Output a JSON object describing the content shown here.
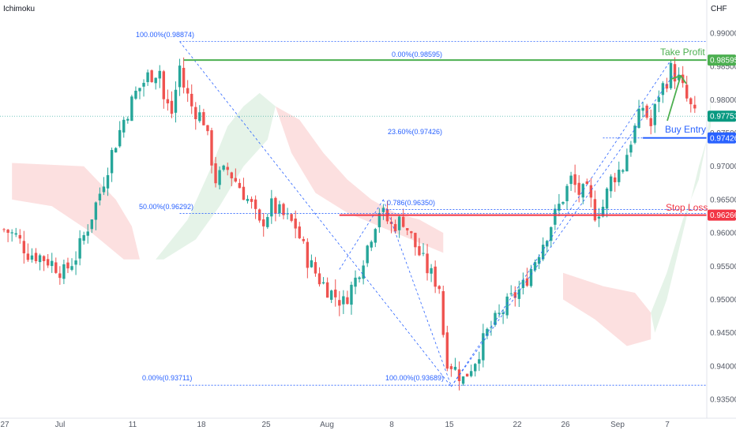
{
  "indicator_label": "Ichimoku",
  "currency_label": "CHF",
  "chart_data": {
    "type": "candlestick",
    "instrument_currency": "CHF",
    "ylim": [
      0.9325,
      0.9925
    ],
    "y_ticks": [
      "0.99000",
      "0.98500",
      "0.98000",
      "0.97500",
      "0.97000",
      "0.96500",
      "0.96000",
      "0.95500",
      "0.95000",
      "0.94500",
      "0.94000",
      "0.93500"
    ],
    "x_ticks": [
      "27",
      "Jul",
      "11",
      "18",
      "25",
      "Aug",
      "8",
      "15",
      "22",
      "26",
      "Sep",
      "7"
    ],
    "current_price": "0.97753",
    "levels": {
      "take_profit": {
        "label": "Take Profit",
        "price": "0.98595",
        "color": "#4caf50"
      },
      "buy_entry": {
        "label": "Buy Entry",
        "price": "0.97426",
        "color": "#2962ff"
      },
      "stop_loss": {
        "label": "Stop Loss",
        "price": "0.96266",
        "color": "#f23645"
      }
    },
    "fib_labels": [
      {
        "text": "100.00%(0.98874)",
        "price": 0.98874
      },
      {
        "text": "0.00%(0.98595)",
        "price": 0.98595
      },
      {
        "text": "23.60%(0.97426)",
        "price": 0.97426
      },
      {
        "text": "50.00%(0.96292)",
        "price": 0.96292
      },
      {
        "text": "0.786(0.96350)",
        "price": 0.9635
      },
      {
        "text": "0.00%(0.93711)",
        "price": 0.93711
      },
      {
        "text": "100.00%(0.93689)",
        "price": 0.93689
      }
    ],
    "price_path": [
      [
        0,
        0.9605
      ],
      [
        3,
        0.9595
      ],
      [
        6,
        0.957
      ],
      [
        9,
        0.9565
      ],
      [
        12,
        0.9555
      ],
      [
        15,
        0.954
      ],
      [
        18,
        0.9565
      ],
      [
        21,
        0.961
      ],
      [
        24,
        0.966
      ],
      [
        27,
        0.972
      ],
      [
        30,
        0.977
      ],
      [
        33,
        0.981
      ],
      [
        36,
        0.9835
      ],
      [
        39,
        0.9845
      ],
      [
        40,
        0.98
      ],
      [
        42,
        0.978
      ],
      [
        44,
        0.985
      ],
      [
        45,
        0.982
      ],
      [
        47,
        0.979
      ],
      [
        50,
        0.977
      ],
      [
        53,
        0.968
      ],
      [
        56,
        0.9695
      ],
      [
        59,
        0.967
      ],
      [
        62,
        0.964
      ],
      [
        64,
        0.961
      ],
      [
        67,
        0.964
      ],
      [
        70,
        0.9625
      ],
      [
        73,
        0.961
      ],
      [
        76,
        0.956
      ],
      [
        79,
        0.953
      ],
      [
        82,
        0.951
      ],
      [
        85,
        0.9495
      ],
      [
        88,
        0.953
      ],
      [
        91,
        0.958
      ],
      [
        94,
        0.9635
      ],
      [
        97,
        0.961
      ],
      [
        100,
        0.962
      ],
      [
        103,
        0.958
      ],
      [
        106,
        0.9545
      ],
      [
        109,
        0.952
      ],
      [
        110,
        0.945
      ],
      [
        111,
        0.941
      ],
      [
        113,
        0.9395
      ],
      [
        115,
        0.938
      ],
      [
        118,
        0.941
      ],
      [
        121,
        0.945
      ],
      [
        124,
        0.9475
      ],
      [
        127,
        0.95
      ],
      [
        130,
        0.952
      ],
      [
        133,
        0.956
      ],
      [
        136,
        0.96
      ],
      [
        139,
        0.964
      ],
      [
        142,
        0.968
      ],
      [
        144,
        0.966
      ],
      [
        146,
        0.966
      ],
      [
        148,
        0.963
      ],
      [
        150,
        0.964
      ],
      [
        152,
        0.968
      ],
      [
        155,
        0.97
      ],
      [
        157,
        0.974
      ],
      [
        160,
        0.979
      ],
      [
        162,
        0.976
      ],
      [
        164,
        0.981
      ],
      [
        166,
        0.983
      ],
      [
        167,
        0.9845
      ],
      [
        169,
        0.983
      ],
      [
        171,
        0.98
      ],
      [
        173,
        0.9775
      ]
    ],
    "bar_count": 174
  }
}
